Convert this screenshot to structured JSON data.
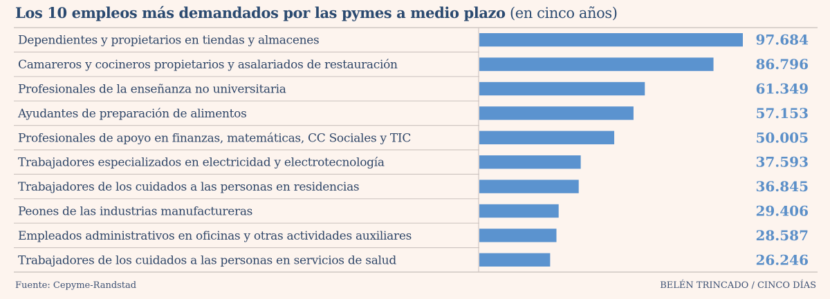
{
  "title": {
    "main": "Los 10 empleos más demandados por las pymes a medio plazo",
    "sub": "(en cinco años)"
  },
  "chart_data": {
    "type": "bar",
    "orientation": "horizontal",
    "title": "Los 10 empleos más demandados por las pymes a medio plazo (en cinco años)",
    "categories": [
      "Dependientes y propietarios en tiendas y almacenes",
      "Camareros y cocineros propietarios y asalariados de restauración",
      "Profesionales de la enseñanza no universitaria",
      "Ayudantes de preparación de alimentos",
      "Profesionales de apoyo en finanzas, matemáticas, CC Sociales y TIC",
      "Trabajadores especializados en electricidad y electrotecnología",
      "Trabajadores de los cuidados a las personas en residencias",
      "Peones de las industrias manufactureras",
      "Empleados administrativos en oficinas y otras actividades auxiliares",
      "Trabajadores de los cuidados a las personas en servicios de salud"
    ],
    "values": [
      97684,
      86796,
      61349,
      57153,
      50005,
      37593,
      36845,
      29406,
      28587,
      26246
    ],
    "value_labels": [
      "97.684",
      "86.796",
      "61.349",
      "57.153",
      "50.005",
      "37.593",
      "36.845",
      "29.406",
      "28.587",
      "26.246"
    ],
    "xlim": [
      0,
      97684
    ],
    "grid": false,
    "bar_color": "#5b93cf",
    "value_color": "#5b8fc8"
  },
  "footer": {
    "source": "Fuente: Cepyme-Randstad",
    "credit": "BELÉN TRINCADO / CINCO DÍAS"
  },
  "colors": {
    "background": "#fdf4ee",
    "title": "#2b4a70",
    "lines": "#cfc6c2"
  }
}
